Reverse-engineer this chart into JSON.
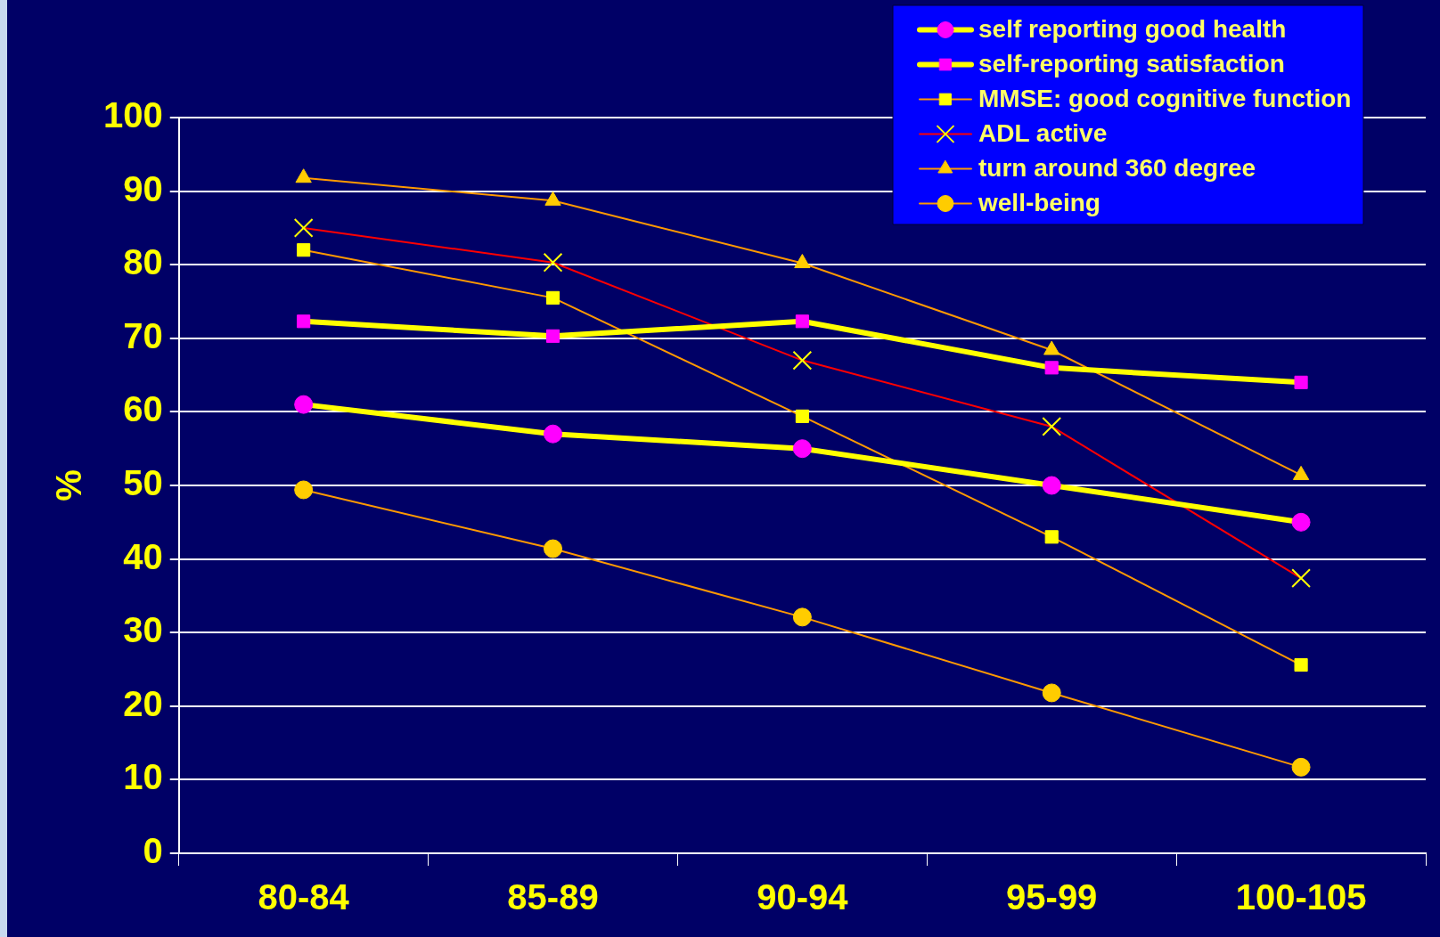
{
  "chart_data": {
    "type": "line",
    "ylabel": "%",
    "categories": [
      "80-84",
      "85-89",
      "90-94",
      "95-99",
      "100-105"
    ],
    "ylim": [
      0,
      100
    ],
    "yticks": [
      0,
      10,
      20,
      30,
      40,
      50,
      60,
      70,
      80,
      90,
      100
    ],
    "grid": "y",
    "legend": "top right",
    "series": [
      {
        "name": "self reporting good health",
        "color": "#ffff00",
        "colors": [
          "#ff00ff",
          "#ff00ff",
          "#ff00ff",
          "#ff00ff",
          "#ff00ff"
        ],
        "marker": "circle",
        "values": [
          61,
          57,
          55,
          50,
          45
        ]
      },
      {
        "name": "self-reporting satisfaction",
        "color": "#ffff00",
        "colors": [
          "#ff00ff",
          "#ff00ff",
          "#ff00ff",
          "#ff00ff",
          "#ff00ff"
        ],
        "marker": "square",
        "values": [
          72.3,
          70.3,
          72.3,
          66,
          64
        ]
      },
      {
        "name": "MMSE: good cognitive function",
        "color": "#ff9900",
        "colors": [
          "#ffff00",
          "#ffff00",
          "#ffff00",
          "#ffff00",
          "#ffff00"
        ],
        "marker": "square",
        "values": [
          82,
          75.5,
          59.4,
          43,
          25.6
        ]
      },
      {
        "name": "ADL active",
        "color": "#ff0000",
        "colors": [
          "#ffff00",
          "#ffff00",
          "#ffff00",
          "#ffff00",
          "#ffff00"
        ],
        "marker": "cross",
        "values": [
          85,
          80.3,
          67,
          58,
          37.4
        ]
      },
      {
        "name": "turn around 360 degree",
        "color": "#ff9900",
        "colors": [
          "#ffcc00",
          "#ffcc00",
          "#ffcc00",
          "#ffcc00",
          "#ffcc00"
        ],
        "marker": "triangle",
        "values": [
          91.8,
          88.7,
          80.2,
          68.4,
          51.4
        ]
      },
      {
        "name": "well-being",
        "color": "#ff9900",
        "colors": [
          "#ffcc00",
          "#ffcc00",
          "#ffcc00",
          "#ffcc00",
          "#ffcc00"
        ],
        "marker": "circle",
        "values": [
          49.4,
          41.4,
          32.1,
          21.8,
          11.7
        ]
      }
    ]
  }
}
